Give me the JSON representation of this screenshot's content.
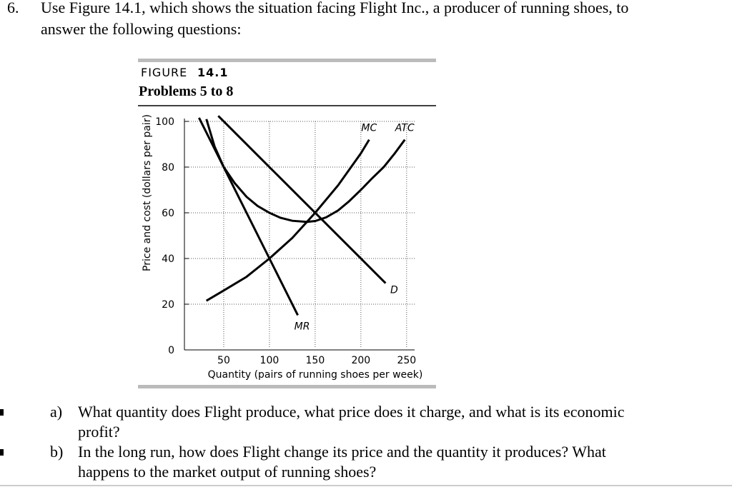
{
  "question": {
    "number": "6.",
    "lines": [
      "Use Figure 14.1, which shows the situation facing Flight Inc., a producer of running shoes, to",
      "answer the following questions:"
    ]
  },
  "figure": {
    "label": "FIGURE",
    "number": "14.1",
    "title": "Problems 5 to 8",
    "chart_data": {
      "type": "line",
      "x_label": "Quantity (pairs of running shoes per week)",
      "y_label": "Price and cost (dollars per pair)",
      "xlim": [
        0,
        265
      ],
      "ylim": [
        0,
        100
      ],
      "xticks": [
        50,
        100,
        150,
        200,
        250
      ],
      "yticks": [
        0,
        20,
        40,
        60,
        80,
        100
      ],
      "grid": true,
      "series": [
        {
          "name": "MC",
          "color": "#000000",
          "x": [
            31,
            50,
            75,
            100,
            125,
            150,
            175,
            200,
            209
          ],
          "values": [
            21.5,
            26,
            32,
            40,
            49,
            60,
            72,
            86,
            92
          ]
        },
        {
          "name": "ATC",
          "color": "#000000",
          "x": [
            31,
            40,
            50,
            62,
            75,
            87,
            100,
            112,
            125,
            141,
            150,
            162,
            175,
            187,
            200,
            212,
            225,
            237,
            248
          ],
          "values": [
            101,
            89,
            80,
            73,
            67,
            63,
            60,
            57.8,
            56.5,
            56,
            56.4,
            58,
            61,
            65,
            70,
            75,
            80,
            86,
            92
          ]
        },
        {
          "name": "D",
          "color": "#000000",
          "x": [
            44,
            227
          ],
          "values": [
            102.4,
            29.2
          ]
        },
        {
          "name": "MR",
          "color": "#000000",
          "x": [
            23,
            131
          ],
          "values": [
            101.6,
            15.2
          ]
        }
      ]
    }
  },
  "parts": [
    {
      "letter": "a)",
      "lines": [
        "What quantity does Flight produce, what price does it charge, and what is its economic",
        "profit?"
      ]
    },
    {
      "letter": "b)",
      "lines": [
        "In the long run, how does Flight change its price and the quantity it produces? What",
        "happens to the market output of running shoes?"
      ]
    }
  ]
}
